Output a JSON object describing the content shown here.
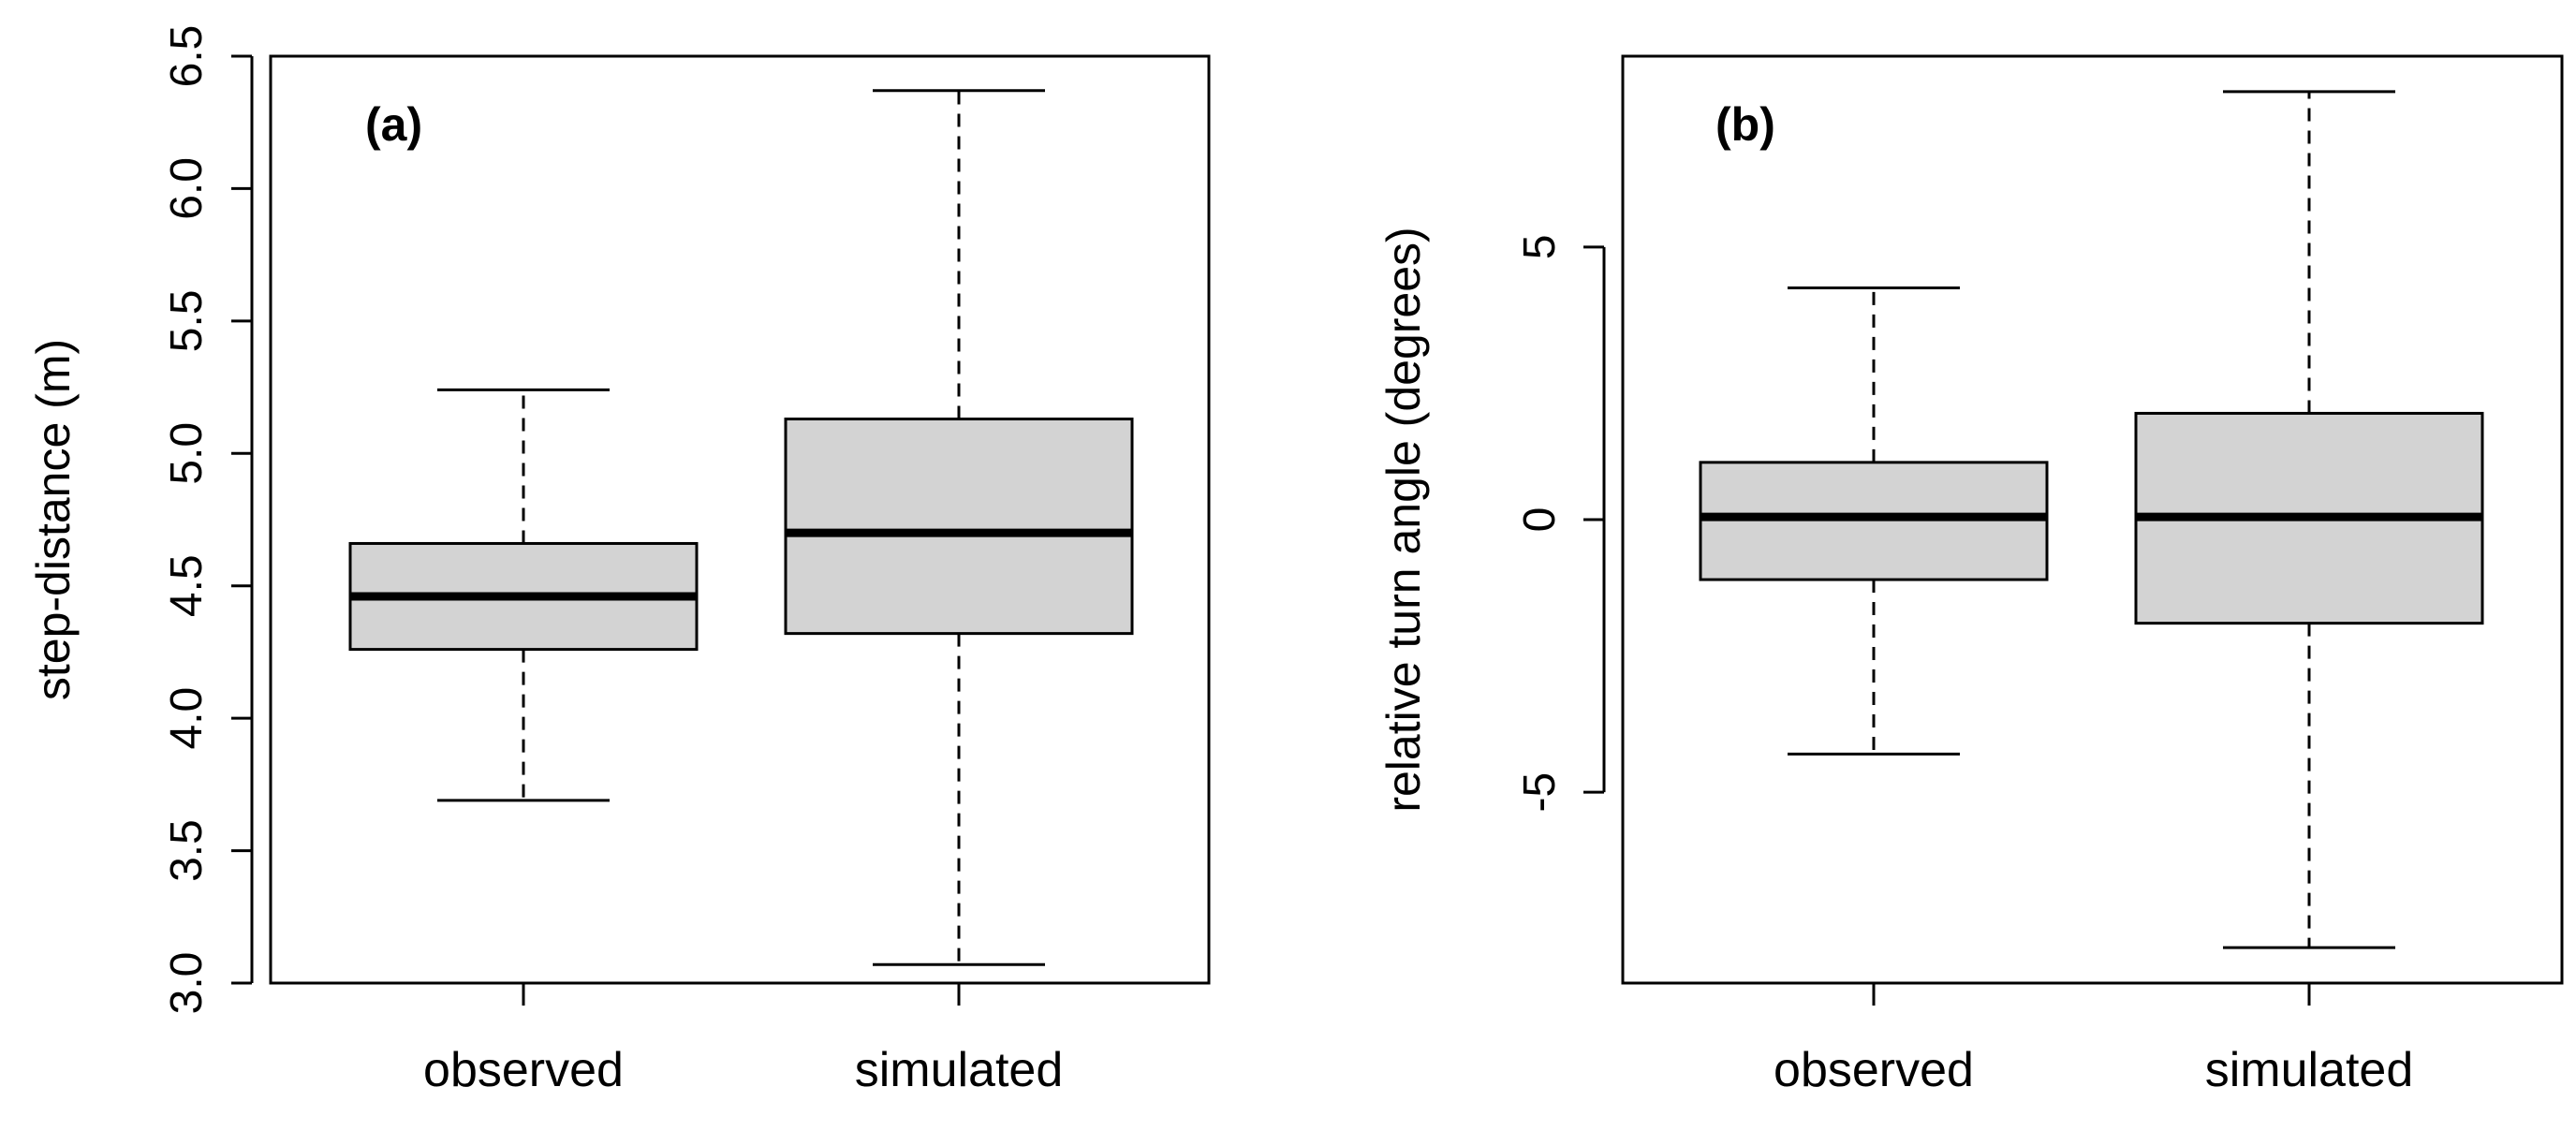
{
  "colors": {
    "box_fill": "#d3d3d3",
    "stroke": "#000000",
    "background": "#ffffff"
  },
  "chart_data": [
    {
      "type": "box",
      "panel_label": "(a)",
      "ylabel": "step-distance (m)",
      "ylim": [
        3.0,
        6.5
      ],
      "yticks": [
        3.0,
        3.5,
        4.0,
        4.5,
        5.0,
        5.5,
        6.0,
        6.5
      ],
      "ytick_labels": [
        "3.0",
        "3.5",
        "4.0",
        "4.5",
        "5.0",
        "5.5",
        "6.0",
        "6.5"
      ],
      "categories": [
        "observed",
        "simulated"
      ],
      "boxes": [
        {
          "category": "observed",
          "whisker_low": 3.69,
          "q1": 4.26,
          "median": 4.46,
          "q3": 4.66,
          "whisker_high": 5.24
        },
        {
          "category": "simulated",
          "whisker_low": 3.07,
          "q1": 4.32,
          "median": 4.7,
          "q3": 5.13,
          "whisker_high": 6.37
        }
      ]
    },
    {
      "type": "box",
      "panel_label": "(b)",
      "ylabel": "relative turn angle (degrees)",
      "ylim": [
        -8.5,
        8.5
      ],
      "yticks": [
        -5,
        0,
        5
      ],
      "ytick_labels": [
        "-5",
        "0",
        "5"
      ],
      "categories": [
        "observed",
        "simulated"
      ],
      "boxes": [
        {
          "category": "observed",
          "whisker_low": -4.3,
          "q1": -1.1,
          "median": 0.05,
          "q3": 1.05,
          "whisker_high": 4.25
        },
        {
          "category": "simulated",
          "whisker_low": -7.85,
          "q1": -1.9,
          "median": 0.05,
          "q3": 1.95,
          "whisker_high": 7.85
        }
      ]
    }
  ]
}
